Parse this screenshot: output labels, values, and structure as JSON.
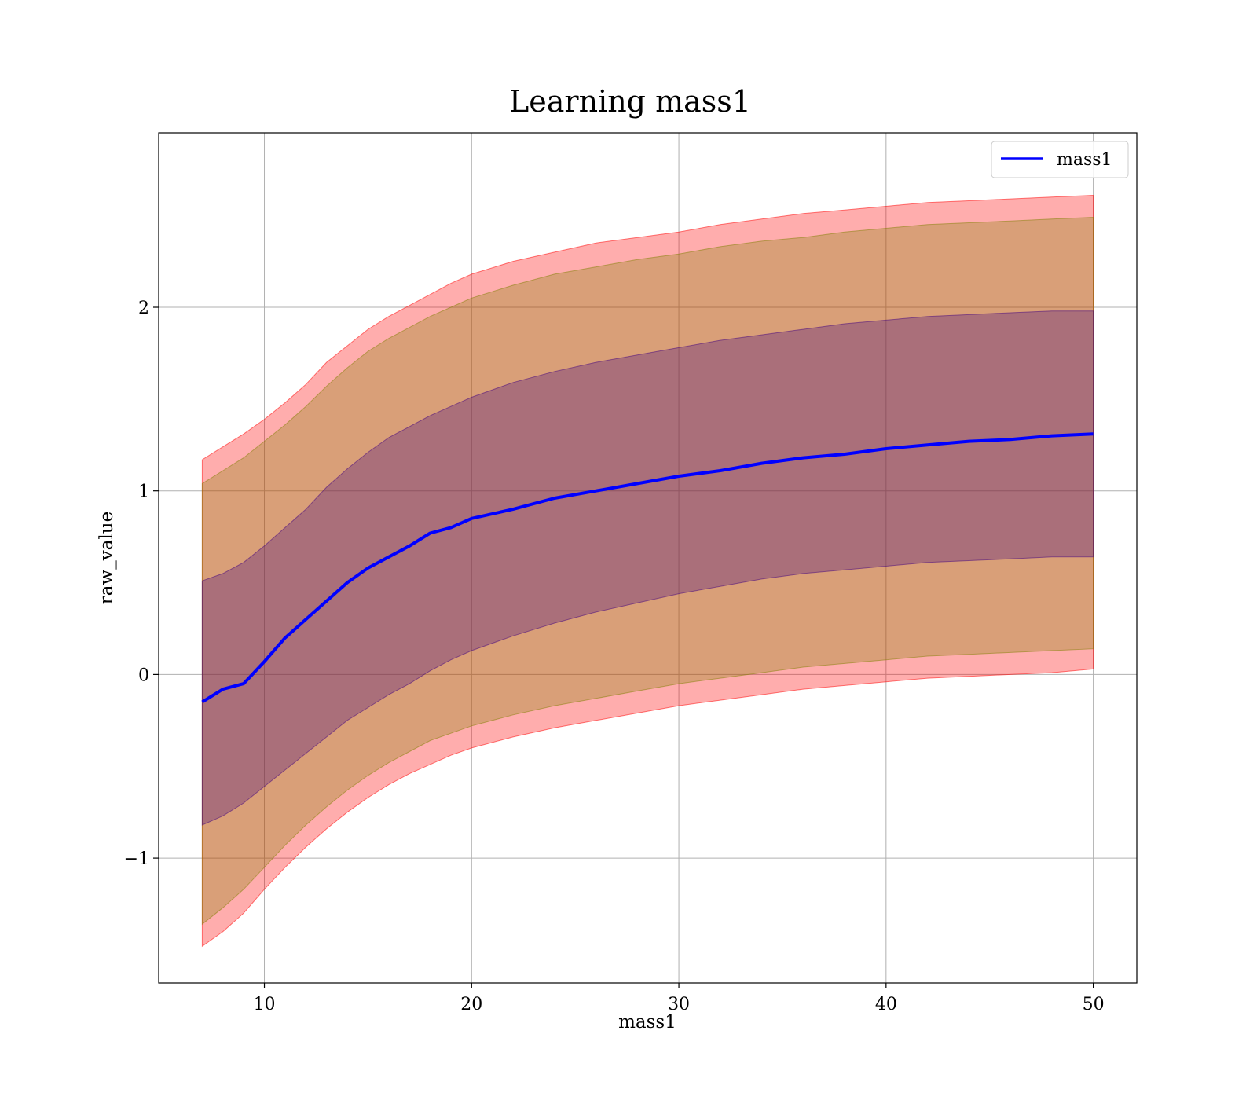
{
  "chart_data": {
    "type": "line",
    "title": "Learning mass1",
    "xlabel": "mass1",
    "ylabel": "raw_value",
    "xlim": [
      4.9,
      52.1
    ],
    "ylim": [
      -1.68,
      2.95
    ],
    "xticks": [
      10,
      20,
      30,
      40,
      50
    ],
    "yticks": [
      -1,
      0,
      1,
      2
    ],
    "xtick_labels": [
      "10",
      "20",
      "30",
      "40",
      "50"
    ],
    "ytick_labels": [
      "−1",
      "0",
      "1",
      "2"
    ],
    "grid": true,
    "legend_position": "upper right",
    "x": [
      7,
      8,
      9,
      10,
      11,
      12,
      13,
      14,
      15,
      16,
      17,
      18,
      19,
      20,
      22,
      24,
      26,
      28,
      30,
      32,
      34,
      36,
      38,
      40,
      42,
      44,
      46,
      48,
      50
    ],
    "series": [
      {
        "name": "mass1",
        "color": "#0000ff",
        "values": [
          -0.15,
          -0.08,
          -0.05,
          0.07,
          0.2,
          0.3,
          0.4,
          0.5,
          0.58,
          0.64,
          0.7,
          0.77,
          0.8,
          0.85,
          0.9,
          0.96,
          1.0,
          1.04,
          1.08,
          1.11,
          1.15,
          1.18,
          1.2,
          1.23,
          1.25,
          1.27,
          1.28,
          1.3,
          1.31
        ]
      }
    ],
    "bands": [
      {
        "lower": [
          -1.48,
          -1.4,
          -1.3,
          -1.17,
          -1.05,
          -0.94,
          -0.84,
          -0.75,
          -0.67,
          -0.6,
          -0.54,
          -0.49,
          -0.44,
          -0.4,
          -0.34,
          -0.29,
          -0.25,
          -0.21,
          -0.17,
          -0.14,
          -0.11,
          -0.08,
          -0.06,
          -0.04,
          -0.02,
          -0.01,
          0.0,
          0.01,
          0.03
        ],
        "upper": [
          1.17,
          1.24,
          1.31,
          1.39,
          1.48,
          1.58,
          1.7,
          1.79,
          1.88,
          1.95,
          2.01,
          2.07,
          2.13,
          2.18,
          2.25,
          2.3,
          2.35,
          2.38,
          2.41,
          2.45,
          2.48,
          2.51,
          2.53,
          2.55,
          2.57,
          2.58,
          2.59,
          2.6,
          2.61
        ],
        "color": "#ff0000",
        "opacity": 0.32
      },
      {
        "lower": [
          -1.36,
          -1.27,
          -1.17,
          -1.05,
          -0.93,
          -0.82,
          -0.72,
          -0.63,
          -0.55,
          -0.48,
          -0.42,
          -0.36,
          -0.32,
          -0.28,
          -0.22,
          -0.17,
          -0.13,
          -0.09,
          -0.05,
          -0.02,
          0.01,
          0.04,
          0.06,
          0.08,
          0.1,
          0.11,
          0.12,
          0.13,
          0.14
        ],
        "upper": [
          1.04,
          1.11,
          1.18,
          1.27,
          1.36,
          1.46,
          1.57,
          1.67,
          1.76,
          1.83,
          1.89,
          1.95,
          2.0,
          2.05,
          2.12,
          2.18,
          2.22,
          2.26,
          2.29,
          2.33,
          2.36,
          2.38,
          2.41,
          2.43,
          2.45,
          2.46,
          2.47,
          2.48,
          2.49
        ],
        "color": "#808000",
        "opacity": 0.3
      },
      {
        "lower": [
          -0.82,
          -0.77,
          -0.7,
          -0.61,
          -0.52,
          -0.43,
          -0.34,
          -0.25,
          -0.18,
          -0.11,
          -0.05,
          0.02,
          0.08,
          0.13,
          0.21,
          0.28,
          0.34,
          0.39,
          0.44,
          0.48,
          0.52,
          0.55,
          0.57,
          0.59,
          0.61,
          0.62,
          0.63,
          0.64,
          0.64
        ],
        "upper": [
          0.51,
          0.55,
          0.61,
          0.7,
          0.8,
          0.9,
          1.02,
          1.12,
          1.21,
          1.29,
          1.35,
          1.41,
          1.46,
          1.51,
          1.59,
          1.65,
          1.7,
          1.74,
          1.78,
          1.82,
          1.85,
          1.88,
          1.91,
          1.93,
          1.95,
          1.96,
          1.97,
          1.98,
          1.98
        ],
        "color": "#400080",
        "opacity": 0.3
      }
    ]
  }
}
